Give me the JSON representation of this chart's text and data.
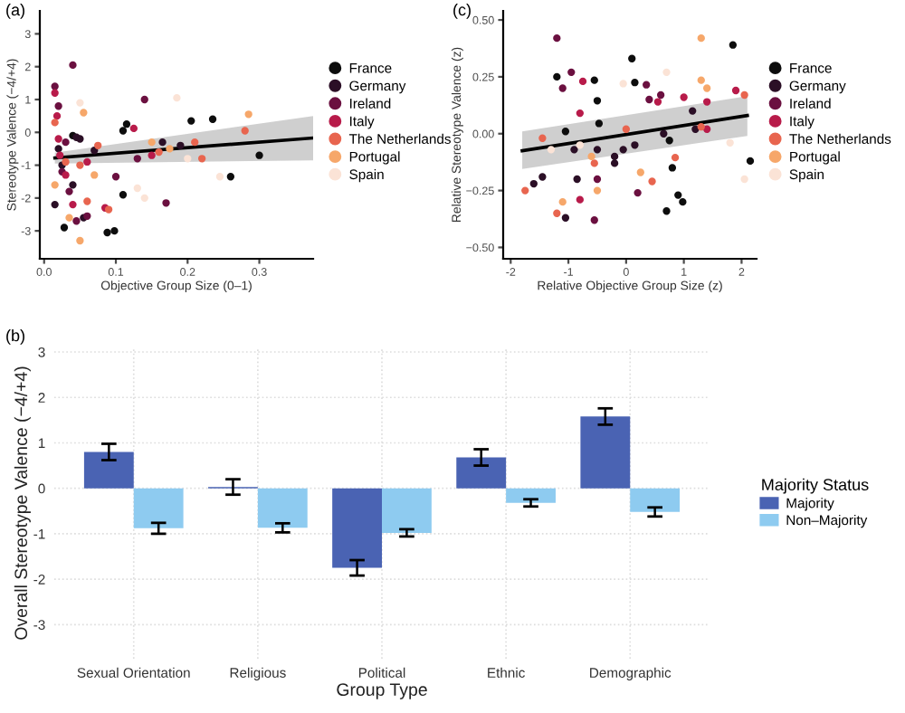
{
  "chart_data": [
    {
      "type": "scatter",
      "title": "(a)",
      "xlabel": "Objective Group Size (0–1)",
      "ylabel": "Stereotype Valence (−4/+4)",
      "xlim": [
        -0.006,
        0.375
      ],
      "ylim": [
        -3.85,
        3.7
      ],
      "xticks": [
        {
          "value": 0,
          "label": "0.0"
        },
        0.1,
        0.2,
        0.3
      ],
      "yticks": [
        -3,
        -2,
        -1,
        0,
        1,
        2,
        3
      ],
      "grid": false,
      "legend": "right",
      "marker": "circle",
      "series": [
        {
          "name": "France",
          "color": "#0d0d0d",
          "x": [
            0.028,
            0.088,
            0.098,
            0.11,
            0.26,
            0.3,
            0.235,
            0.205,
            0.115,
            0.11,
            0.04
          ],
          "values": [
            -2.9,
            -3.05,
            -3.0,
            -1.9,
            -1.35,
            -0.7,
            0.4,
            0.35,
            0.25,
            0.05,
            -0.1
          ]
        },
        {
          "name": "Germany",
          "color": "#2b0f26",
          "x": [
            0.045,
            0.05,
            0.02,
            0.025,
            0.04,
            0.055,
            0.015,
            0.19,
            0.165,
            0.07
          ],
          "values": [
            -0.15,
            -0.2,
            -0.5,
            -1.0,
            -1.6,
            -2.6,
            -2.2,
            -0.4,
            -0.3,
            -0.55
          ]
        },
        {
          "name": "Ireland",
          "color": "#6b1040",
          "x": [
            0.04,
            0.015,
            0.02,
            0.03,
            0.025,
            0.035,
            0.045,
            0.06,
            0.17,
            0.14,
            0.1,
            0.13
          ],
          "values": [
            2.05,
            1.4,
            0.8,
            -0.3,
            -1.2,
            -1.8,
            -2.7,
            -2.55,
            -2.15,
            1.0,
            -1.35,
            -0.8
          ]
        },
        {
          "name": "Italy",
          "color": "#b81b4a",
          "x": [
            0.015,
            0.018,
            0.02,
            0.022,
            0.03,
            0.04,
            0.06,
            0.085,
            0.125,
            0.15
          ],
          "values": [
            1.2,
            0.5,
            -0.2,
            -0.7,
            -1.3,
            -2.2,
            -0.9,
            -2.3,
            0.12,
            -0.7
          ]
        },
        {
          "name": "The Netherlands",
          "color": "#e8654f",
          "x": [
            0.015,
            0.03,
            0.05,
            0.06,
            0.075,
            0.09,
            0.16,
            0.21,
            0.22,
            0.28
          ],
          "values": [
            0.3,
            -0.9,
            -1.0,
            -2.1,
            -0.4,
            -2.35,
            -0.6,
            -0.3,
            -0.8,
            0.05
          ]
        },
        {
          "name": "Portugal",
          "color": "#f6a76a",
          "x": [
            0.055,
            0.035,
            0.05,
            0.15,
            0.175,
            0.285,
            0.015,
            0.07
          ],
          "values": [
            0.6,
            -2.6,
            -3.3,
            -0.3,
            -0.5,
            0.55,
            -1.6,
            -1.3
          ]
        },
        {
          "name": "Spain",
          "color": "#fbe3d6",
          "x": [
            0.185,
            0.2,
            0.245,
            0.13,
            0.05,
            0.14
          ],
          "values": [
            1.05,
            -0.8,
            -1.35,
            -1.7,
            0.9,
            -2.0
          ]
        },
        {
          "type": "line",
          "marker": "none",
          "color": "#000000",
          "x": [
            0.015,
            0.375
          ],
          "values": [
            -0.78,
            -0.17
          ],
          "lower": [
            -0.95,
            -0.85
          ],
          "upper": [
            -0.62,
            0.5
          ]
        }
      ]
    },
    {
      "type": "bar",
      "title": "(b)",
      "xlabel": "Group Type",
      "ylabel": "Overall Stereotype Valence (−4/+4)",
      "legend_title": "Majority Status",
      "categories": [
        "Sexual Orientation",
        "Religious",
        "Political",
        "Ethnic",
        "Demographic"
      ],
      "ylim": [
        -3.75,
        3.1
      ],
      "yticks": [
        -3,
        -2,
        -1,
        0,
        1,
        2,
        3
      ],
      "grid": true,
      "legend": "right",
      "series": [
        {
          "name": "Majority",
          "color": "#4a63b3",
          "values": [
            0.8,
            0.03,
            -1.75,
            0.68,
            1.58
          ],
          "errors": [
            0.18,
            0.17,
            0.17,
            0.18,
            0.18
          ]
        },
        {
          "name": "Non–Majority",
          "color": "#8ecbf0",
          "values": [
            -0.88,
            -0.87,
            -0.98,
            -0.32,
            -0.52
          ],
          "errors": [
            0.12,
            0.1,
            0.08,
            0.08,
            0.1
          ]
        }
      ]
    },
    {
      "type": "scatter",
      "title": "(c)",
      "xlabel": "Relative Objective Group Size (z)",
      "ylabel": "Relative Stereotype Valence (z)",
      "xlim": [
        -2.13,
        2.26
      ],
      "ylim": [
        -0.55,
        0.54
      ],
      "xticks": [
        -2,
        -1,
        0,
        1,
        2
      ],
      "yticks": [
        {
          "value": -0.5,
          "label": "−0.50"
        },
        {
          "value": -0.25,
          "label": "−0.25"
        },
        {
          "value": 0,
          "label": "0.00"
        },
        {
          "value": 0.25,
          "label": "0.25"
        },
        {
          "value": 0.5,
          "label": "0.50"
        }
      ],
      "grid": false,
      "legend": "right",
      "marker": "circle",
      "series": [
        {
          "name": "France",
          "color": "#0d0d0d",
          "x": [
            -1.2,
            -0.55,
            -0.5,
            -0.47,
            -1.05,
            0.1,
            0.15,
            1.85,
            2.15,
            0.75,
            0.8,
            0.9,
            0.98,
            0.7
          ],
          "values": [
            0.25,
            0.235,
            0.145,
            0.045,
            0.01,
            0.33,
            0.225,
            0.39,
            -0.12,
            -0.03,
            -0.15,
            -0.27,
            -0.3,
            -0.34
          ]
        },
        {
          "name": "Germany",
          "color": "#2b0f26",
          "x": [
            -1.05,
            -1.6,
            -1.45,
            -0.85,
            -0.2,
            -0.2,
            -0.05,
            0.15,
            1.15,
            1.2,
            0.65,
            -0.5,
            -0.9
          ],
          "values": [
            -0.37,
            -0.22,
            -0.19,
            -0.2,
            -0.13,
            -0.1,
            -0.07,
            -0.05,
            0.1,
            0.02,
            0.0,
            -0.07,
            -0.07
          ]
        },
        {
          "name": "Ireland",
          "color": "#6b1040",
          "x": [
            -1.2,
            -0.95,
            -1.1,
            0.35,
            0.4,
            0.6,
            0.2,
            -0.5,
            -0.55
          ],
          "values": [
            0.42,
            0.27,
            0.2,
            0.215,
            0.15,
            0.17,
            -0.26,
            -0.2,
            -0.38
          ]
        },
        {
          "name": "Italy",
          "color": "#b81b4a",
          "x": [
            -0.75,
            -0.8,
            0.55,
            1.0,
            1.4,
            1.4,
            -0.8,
            1.9
          ],
          "values": [
            0.23,
            0.09,
            0.14,
            0.16,
            0.14,
            0.02,
            -0.29,
            0.19
          ]
        },
        {
          "name": "The Netherlands",
          "color": "#e8654f",
          "x": [
            -1.75,
            -1.2,
            0.45,
            0.85,
            -1.45,
            0.0,
            1.3,
            -0.55,
            2.05
          ],
          "values": [
            -0.25,
            -0.35,
            -0.21,
            -0.105,
            -0.02,
            0.02,
            0.03,
            -0.13,
            0.17
          ]
        },
        {
          "name": "Portugal",
          "color": "#f6a76a",
          "x": [
            1.3,
            1.3,
            -1.1,
            -0.5,
            0.25,
            1.4,
            -0.6
          ],
          "values": [
            0.42,
            0.235,
            -0.3,
            -0.25,
            -0.17,
            0.2,
            -0.1
          ]
        },
        {
          "name": "Spain",
          "color": "#fbe3d6",
          "x": [
            0.7,
            -0.05,
            1.8,
            2.05,
            -1.3,
            -0.8
          ],
          "values": [
            0.27,
            0.22,
            -0.04,
            -0.2,
            -0.07,
            -0.05
          ]
        },
        {
          "type": "line",
          "marker": "none",
          "color": "#000000",
          "x": [
            -1.8,
            2.1
          ],
          "values": [
            -0.075,
            0.08
          ],
          "lower": [
            -0.155,
            -0.01
          ],
          "upper": [
            0.01,
            0.165
          ]
        }
      ]
    }
  ]
}
